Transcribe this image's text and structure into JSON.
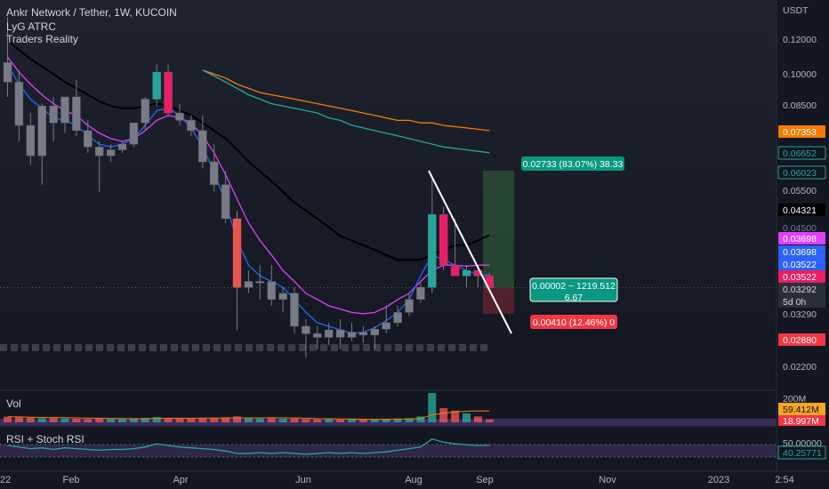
{
  "header": {
    "symbol_line": "Ankr Network / Tether, 1W, KUCOIN",
    "indicators": [
      "LyG ATRC",
      "Traders Reality"
    ]
  },
  "price_axis": {
    "currency": "USDT",
    "ticks": [
      "0.12000",
      "0.10000",
      "0.08500",
      "0.05500",
      "0.03290",
      "0.02200"
    ],
    "badges": [
      {
        "label": "0.07353",
        "value": 0.07353,
        "bg": "#f57c00",
        "fg": "#ffffff"
      },
      {
        "label": "0.06652",
        "value": 0.06652,
        "bg": "#131722",
        "fg": "#26a69a",
        "border": "#26a69a"
      },
      {
        "label": "0.06023",
        "value": 0.06023,
        "bg": "#131722",
        "fg": "#26a69a",
        "border": "#26a69a"
      },
      {
        "label": "0.04321",
        "value": 0.04321,
        "bg": "#000000",
        "fg": "#ffffff"
      },
      {
        "label": "0.04500",
        "value": 0.045,
        "bg": "#131722",
        "fg": "#787b86"
      },
      {
        "label": "0.03698",
        "value": 0.03698,
        "bg": "#e040fb",
        "fg": "#ffffff"
      },
      {
        "label": "0.03698",
        "value": 0.03698,
        "bg": "#2962ff",
        "fg": "#ffffff"
      },
      {
        "label": "0.03522",
        "value": 0.03522,
        "bg": "#2962ff",
        "fg": "#ffffff"
      },
      {
        "label": "0.03522",
        "value": 0.03522,
        "bg": "#e91e63",
        "fg": "#ffffff"
      },
      {
        "label": "0.03292",
        "value": 0.03292,
        "bg": "#2a2e39",
        "fg": "#d1d4dc"
      },
      {
        "label": "5d 0h",
        "value": 0.03292,
        "bg": "#2a2e39",
        "fg": "#d1d4dc"
      },
      {
        "label": "0.02880",
        "value": 0.0288,
        "bg": "#f23645",
        "fg": "#ffffff"
      }
    ],
    "vol_ticks": [
      "200M"
    ],
    "vol_badges": [
      {
        "label": "59.412M",
        "bg": "#f5a623",
        "fg": "#131722"
      },
      {
        "label": "18.997M",
        "bg": "#f23645",
        "fg": "#ffffff"
      }
    ],
    "rsi_ticks": [
      "50.00000"
    ],
    "rsi_badges": [
      {
        "label": "40.25771",
        "bg": "#131722",
        "fg": "#26a69a",
        "border": "#26a69a"
      }
    ]
  },
  "time_axis": {
    "labels": [
      "22",
      "Feb",
      "Apr",
      "Jun",
      "Aug",
      "Sep",
      "Nov",
      "2023",
      "2:54"
    ]
  },
  "panes": {
    "volume_title": "Vol",
    "rsi_title": "RSI + Stoch RSI"
  },
  "position_tool": {
    "target_label": "0.02733 (83.07%) 38.33",
    "stop_label": "0.00410 (12.46%) 0",
    "center_label_1": "0.00002 ~ 1219.512",
    "center_label_2": "6.67",
    "entry": 0.03292,
    "target": 0.06023,
    "stop": 0.0288
  },
  "chart_data": {
    "type": "candlestick",
    "title": "Ankr Network / Tether, 1W, KUCOIN",
    "y_scale": "log",
    "ylim": [
      0.0195,
      0.145
    ],
    "ohlc": [
      {
        "o": 0.105,
        "h": 0.133,
        "l": 0.088,
        "c": 0.095
      },
      {
        "o": 0.095,
        "h": 0.101,
        "l": 0.07,
        "c": 0.076
      },
      {
        "o": 0.076,
        "h": 0.081,
        "l": 0.062,
        "c": 0.065
      },
      {
        "o": 0.065,
        "h": 0.085,
        "l": 0.056,
        "c": 0.084
      },
      {
        "o": 0.084,
        "h": 0.088,
        "l": 0.07,
        "c": 0.077
      },
      {
        "o": 0.077,
        "h": 0.088,
        "l": 0.073,
        "c": 0.088
      },
      {
        "o": 0.088,
        "h": 0.096,
        "l": 0.072,
        "c": 0.074
      },
      {
        "o": 0.074,
        "h": 0.078,
        "l": 0.066,
        "c": 0.068
      },
      {
        "o": 0.068,
        "h": 0.07,
        "l": 0.054,
        "c": 0.065
      },
      {
        "o": 0.065,
        "h": 0.069,
        "l": 0.063,
        "c": 0.067
      },
      {
        "o": 0.067,
        "h": 0.07,
        "l": 0.066,
        "c": 0.069
      },
      {
        "o": 0.069,
        "h": 0.077,
        "l": 0.068,
        "c": 0.077
      },
      {
        "o": 0.077,
        "h": 0.088,
        "l": 0.074,
        "c": 0.087
      },
      {
        "o": 0.087,
        "h": 0.104,
        "l": 0.084,
        "c": 0.1
      },
      {
        "o": 0.1,
        "h": 0.104,
        "l": 0.08,
        "c": 0.081
      },
      {
        "o": 0.081,
        "h": 0.085,
        "l": 0.076,
        "c": 0.078
      },
      {
        "o": 0.078,
        "h": 0.08,
        "l": 0.072,
        "c": 0.074
      },
      {
        "o": 0.074,
        "h": 0.08,
        "l": 0.061,
        "c": 0.063
      },
      {
        "o": 0.063,
        "h": 0.069,
        "l": 0.054,
        "c": 0.056
      },
      {
        "o": 0.056,
        "h": 0.06,
        "l": 0.046,
        "c": 0.047
      },
      {
        "o": 0.047,
        "h": 0.049,
        "l": 0.0265,
        "c": 0.033
      },
      {
        "o": 0.033,
        "h": 0.036,
        "l": 0.032,
        "c": 0.034
      },
      {
        "o": 0.034,
        "h": 0.037,
        "l": 0.031,
        "c": 0.034
      },
      {
        "o": 0.034,
        "h": 0.037,
        "l": 0.03,
        "c": 0.031
      },
      {
        "o": 0.031,
        "h": 0.033,
        "l": 0.029,
        "c": 0.032
      },
      {
        "o": 0.032,
        "h": 0.033,
        "l": 0.026,
        "c": 0.027
      },
      {
        "o": 0.027,
        "h": 0.028,
        "l": 0.023,
        "c": 0.026
      },
      {
        "o": 0.026,
        "h": 0.027,
        "l": 0.024,
        "c": 0.0255
      },
      {
        "o": 0.0255,
        "h": 0.0275,
        "l": 0.0245,
        "c": 0.0265
      },
      {
        "o": 0.0265,
        "h": 0.028,
        "l": 0.024,
        "c": 0.0255
      },
      {
        "o": 0.0255,
        "h": 0.0275,
        "l": 0.025,
        "c": 0.0262
      },
      {
        "o": 0.0262,
        "h": 0.027,
        "l": 0.0248,
        "c": 0.0258
      },
      {
        "o": 0.0258,
        "h": 0.027,
        "l": 0.024,
        "c": 0.0266
      },
      {
        "o": 0.0266,
        "h": 0.03,
        "l": 0.026,
        "c": 0.0275
      },
      {
        "o": 0.0275,
        "h": 0.03,
        "l": 0.027,
        "c": 0.029
      },
      {
        "o": 0.029,
        "h": 0.032,
        "l": 0.0285,
        "c": 0.031
      },
      {
        "o": 0.031,
        "h": 0.034,
        "l": 0.0305,
        "c": 0.033
      },
      {
        "o": 0.033,
        "h": 0.058,
        "l": 0.032,
        "c": 0.048
      },
      {
        "o": 0.048,
        "h": 0.05,
        "l": 0.036,
        "c": 0.037
      },
      {
        "o": 0.037,
        "h": 0.047,
        "l": 0.035,
        "c": 0.035
      },
      {
        "o": 0.035,
        "h": 0.037,
        "l": 0.033,
        "c": 0.036
      },
      {
        "o": 0.036,
        "h": 0.037,
        "l": 0.033,
        "c": 0.035
      },
      {
        "o": 0.035,
        "h": 0.0355,
        "l": 0.0325,
        "c": 0.0329
      }
    ],
    "volume": [
      38,
      36,
      32,
      28,
      30,
      26,
      24,
      22,
      30,
      24,
      22,
      24,
      30,
      36,
      30,
      26,
      24,
      28,
      30,
      34,
      40,
      30,
      26,
      28,
      24,
      26,
      22,
      20,
      22,
      20,
      22,
      18,
      20,
      24,
      26,
      28,
      40,
      200,
      96,
      80,
      62,
      40,
      20
    ],
    "series": [
      {
        "name": "",
        "color": "#000000",
        "values": [
          0.118,
          0.112,
          0.107,
          0.103,
          0.099,
          0.095,
          0.092,
          0.089,
          0.086,
          0.084,
          0.083,
          0.083,
          0.084,
          0.085,
          0.084,
          0.082,
          0.08,
          0.077,
          0.074,
          0.071,
          0.067,
          0.063,
          0.06,
          0.057,
          0.054,
          0.051,
          0.049,
          0.047,
          0.045,
          0.043,
          0.042,
          0.041,
          0.04,
          0.039,
          0.038,
          0.038,
          0.038,
          0.039,
          0.04,
          0.041,
          0.041,
          0.042,
          0.0432
        ]
      },
      {
        "name": "",
        "color": "#e040fb",
        "values": [
          0.108,
          0.1,
          0.094,
          0.089,
          0.085,
          0.082,
          0.08,
          0.076,
          0.073,
          0.071,
          0.07,
          0.071,
          0.074,
          0.078,
          0.08,
          0.079,
          0.077,
          0.072,
          0.066,
          0.059,
          0.052,
          0.046,
          0.042,
          0.039,
          0.036,
          0.034,
          0.032,
          0.031,
          0.03,
          0.0295,
          0.029,
          0.0288,
          0.029,
          0.0298,
          0.031,
          0.032,
          0.034,
          0.036,
          0.037,
          0.037,
          0.0368,
          0.037,
          0.037
        ]
      },
      {
        "name": "",
        "color": "#2962ff",
        "values": [
          0.104,
          0.094,
          0.087,
          0.083,
          0.079,
          0.078,
          0.076,
          0.072,
          0.069,
          0.068,
          0.069,
          0.071,
          0.076,
          0.082,
          0.083,
          0.08,
          0.075,
          0.068,
          0.06,
          0.051,
          0.042,
          0.037,
          0.035,
          0.034,
          0.033,
          0.031,
          0.029,
          0.0275,
          0.027,
          0.0265,
          0.026,
          0.0262,
          0.0268,
          0.0278,
          0.029,
          0.031,
          0.035,
          0.039,
          0.038,
          0.037,
          0.036,
          0.0352,
          0.0352
        ]
      },
      {
        "name": "",
        "color": "#f57c00",
        "start_index": 17,
        "values": [
          0.101,
          0.099,
          0.097,
          0.094,
          0.092,
          0.09,
          0.089,
          0.088,
          0.087,
          0.086,
          0.085,
          0.084,
          0.083,
          0.082,
          0.081,
          0.08,
          0.079,
          0.078,
          0.078,
          0.077,
          0.077,
          0.076,
          0.0755,
          0.075,
          0.0745,
          0.074
        ]
      },
      {
        "name": "",
        "color": "#26a69a",
        "start_index": 17,
        "values": [
          0.101,
          0.098,
          0.095,
          0.092,
          0.089,
          0.087,
          0.085,
          0.084,
          0.083,
          0.082,
          0.081,
          0.079,
          0.078,
          0.076,
          0.075,
          0.074,
          0.073,
          0.072,
          0.071,
          0.07,
          0.069,
          0.068,
          0.0675,
          0.067,
          0.0665,
          0.066
        ]
      }
    ],
    "rsi": [
      40,
      38,
      36,
      37,
      35,
      37,
      36,
      35,
      34,
      35,
      35,
      36,
      38,
      42,
      40,
      38,
      37,
      36,
      35,
      33,
      30,
      30,
      31,
      30,
      31,
      30,
      29,
      30,
      31,
      30,
      31,
      30,
      31,
      32,
      34,
      36,
      38,
      48,
      44,
      42,
      41,
      40,
      40.26
    ]
  }
}
